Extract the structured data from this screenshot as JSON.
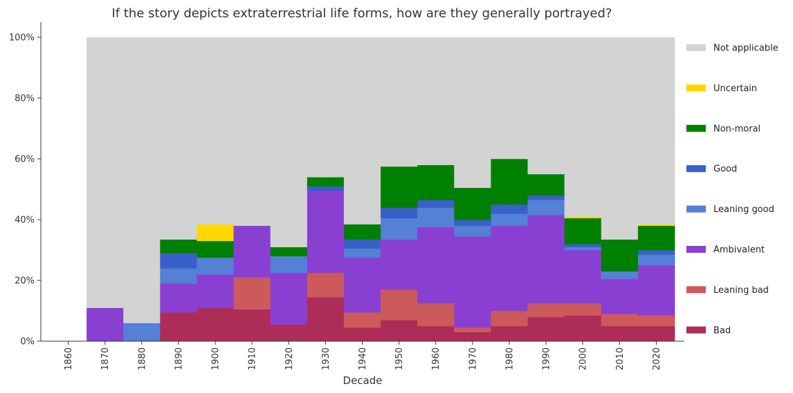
{
  "chart_data": {
    "type": "bar",
    "stacked": true,
    "title": "If the story depicts extraterrestrial life forms, how are they generally portrayed?",
    "xlabel": "Decade",
    "ylabel": "",
    "ylim": [
      0,
      100
    ],
    "y_ticks": [
      "0%",
      "20%",
      "40%",
      "60%",
      "80%",
      "100%"
    ],
    "categories": [
      "1860",
      "1870",
      "1880",
      "1890",
      "1900",
      "1910",
      "1920",
      "1930",
      "1940",
      "1950",
      "1960",
      "1970",
      "1980",
      "1990",
      "2000",
      "2010",
      "2020"
    ],
    "legend_position": "right",
    "series": [
      {
        "name": "Bad",
        "color": "#ad2d58",
        "values": [
          0,
          0,
          0,
          9.5,
          11,
          10.5,
          5.5,
          14.5,
          4.5,
          7,
          5,
          3,
          5,
          8,
          8.5,
          5,
          5
        ]
      },
      {
        "name": "Leaning bad",
        "color": "#cd5a5a",
        "values": [
          0,
          0,
          0,
          0,
          0,
          10.5,
          0,
          8,
          5,
          10,
          7.5,
          1.5,
          5,
          4.5,
          4,
          4,
          3.5
        ]
      },
      {
        "name": "Ambivalent",
        "color": "#8a3fd3",
        "values": [
          0,
          11,
          0,
          9.5,
          11,
          17,
          17,
          27,
          18,
          16.5,
          25,
          30,
          28,
          29,
          17.5,
          11.5,
          16.5
        ]
      },
      {
        "name": "Leaning good",
        "color": "#5480d5",
        "values": [
          0,
          0,
          6,
          5,
          5.5,
          0,
          5.5,
          0,
          3,
          7,
          6.5,
          3.5,
          4,
          5,
          1,
          2.5,
          3.5
        ]
      },
      {
        "name": "Good",
        "color": "#3a5fc8",
        "values": [
          0,
          0,
          0,
          5,
          0,
          0,
          0,
          1.5,
          3,
          3.5,
          2.5,
          2,
          3,
          1.5,
          1,
          0,
          1.5
        ]
      },
      {
        "name": "Non-moral",
        "color": "#008000",
        "values": [
          0,
          0,
          0,
          4.5,
          5.5,
          0,
          3,
          3,
          5,
          13.5,
          11.5,
          10.5,
          15,
          7,
          8.5,
          10.5,
          8
        ]
      },
      {
        "name": "Uncertain",
        "color": "#ffd700",
        "values": [
          0,
          0,
          0,
          0,
          5.5,
          0,
          0,
          0,
          0,
          0,
          0,
          0,
          0,
          0,
          0.5,
          0,
          0.5
        ]
      },
      {
        "name": "Not applicable",
        "color": "#d3d3d3",
        "values": [
          0,
          89,
          94,
          66.5,
          61.5,
          62,
          69,
          46,
          61.5,
          42.5,
          42,
          49.5,
          40,
          45,
          59,
          66.5,
          61.5
        ]
      }
    ]
  }
}
